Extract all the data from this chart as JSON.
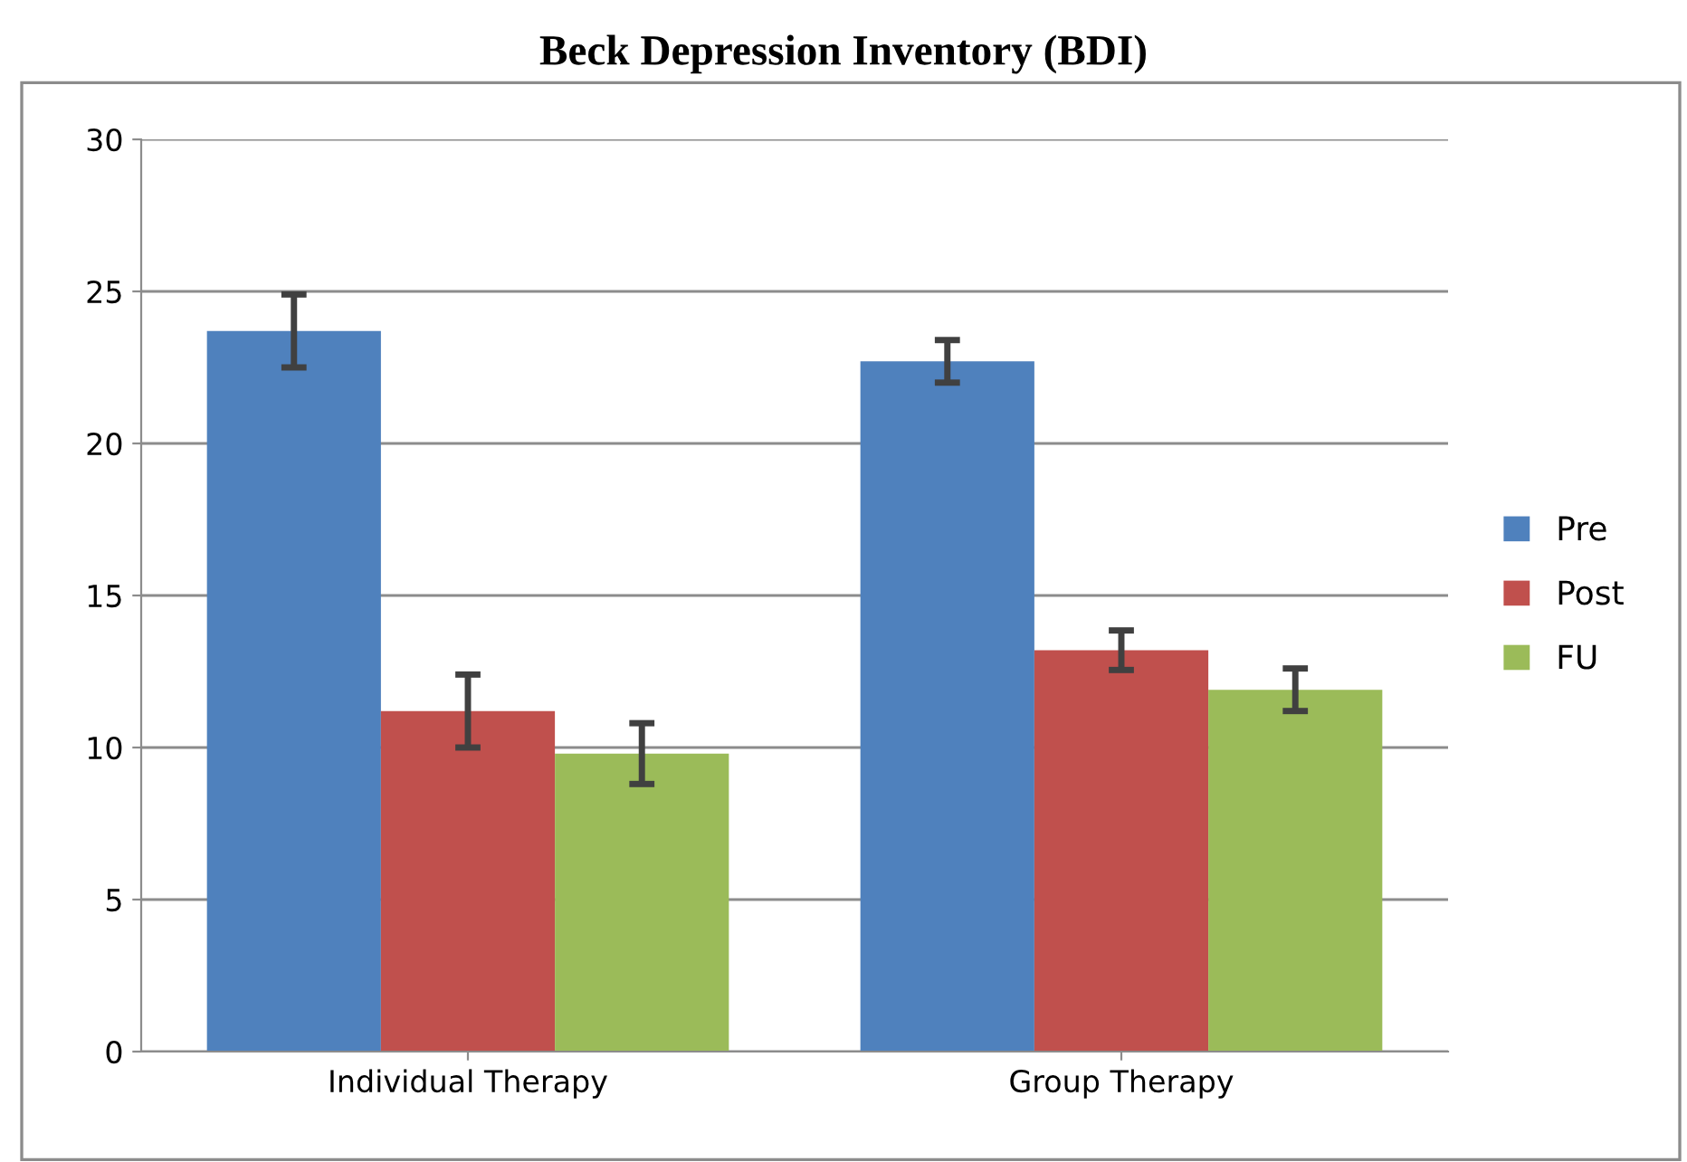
{
  "chart_data": {
    "type": "bar",
    "title": "Beck Depression Inventory (BDI)",
    "categories": [
      "Individual Therapy",
      "Group Therapy"
    ],
    "series": [
      {
        "name": "Pre",
        "color": "#4f81bd",
        "values": [
          23.7,
          22.7
        ],
        "errors": [
          1.2,
          0.7
        ]
      },
      {
        "name": "Post",
        "color": "#c0504d",
        "values": [
          11.2,
          13.2
        ],
        "errors": [
          1.2,
          0.65
        ]
      },
      {
        "name": "FU",
        "color": "#9bbb59",
        "values": [
          9.8,
          11.9
        ],
        "errors": [
          1.0,
          0.7
        ]
      }
    ],
    "ylim": [
      0,
      30
    ],
    "yticks": [
      0,
      5,
      10,
      15,
      20,
      25,
      30
    ],
    "grid": "y",
    "legend": "right"
  }
}
